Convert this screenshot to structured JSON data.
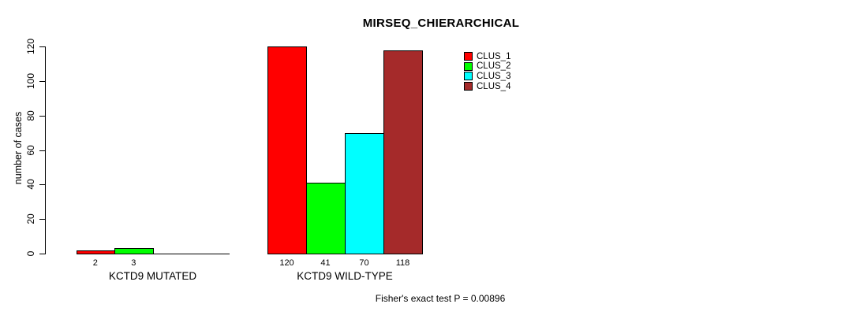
{
  "chart_data": {
    "type": "bar",
    "title": "MIRSEQ_CHIERARCHICAL",
    "ylabel": "number of cases",
    "xlabel": "",
    "ylim": [
      0,
      120
    ],
    "yticks": [
      0,
      20,
      40,
      60,
      80,
      100,
      120
    ],
    "grid": false,
    "legend_position": "top-right-inside",
    "categories": [
      "KCTD9 MUTATED",
      "KCTD9 WILD-TYPE"
    ],
    "series": [
      {
        "name": "CLUS_1",
        "color": "#FF0000",
        "values": [
          2,
          120
        ]
      },
      {
        "name": "CLUS_2",
        "color": "#00FF00",
        "values": [
          3,
          41
        ]
      },
      {
        "name": "CLUS_3",
        "color": "#00FFFF",
        "values": [
          0,
          70
        ]
      },
      {
        "name": "CLUS_4",
        "color": "#A52A2A",
        "values": [
          0,
          118
        ]
      }
    ],
    "bar_value_labels": [
      [
        "2",
        "3",
        "",
        ""
      ],
      [
        "120",
        "41",
        "70",
        "118"
      ]
    ],
    "footer": "Fisher's exact test P = 0.00896"
  }
}
